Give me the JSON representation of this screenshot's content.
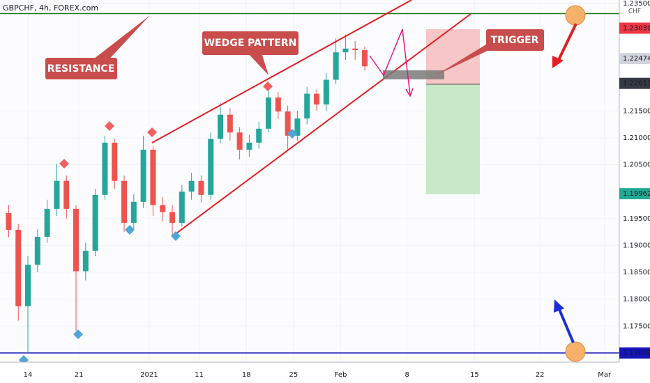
{
  "chart_data": {
    "type": "candlestick",
    "title": "GBPCHF, 4h, FOREX.com",
    "currency": "CHF",
    "x": [
      -2,
      -1,
      0,
      1,
      2,
      3,
      4,
      5,
      6,
      7,
      8,
      9,
      10,
      11,
      12,
      13,
      14,
      15,
      16,
      17,
      18,
      19,
      20,
      21,
      22,
      23,
      24,
      25,
      26,
      27,
      28,
      29,
      30,
      31,
      32,
      33,
      34,
      35
    ],
    "open": [
      1.196,
      1.1929,
      1.1787,
      1.1864,
      1.1916,
      1.1968,
      1.202,
      1.1968,
      1.1852,
      1.189,
      1.1994,
      1.2091,
      1.202,
      1.1942,
      1.1981,
      1.2078,
      1.1975,
      1.1962,
      1.1942,
      1.2,
      1.202,
      1.1994,
      1.2098,
      1.2143,
      1.211,
      1.2078,
      1.2091,
      1.2117,
      1.2175,
      1.2149,
      1.2104,
      1.2136,
      1.2182,
      1.2162,
      1.2208,
      1.2259,
      1.2266,
      1.2263
    ],
    "high": [
      1.1975,
      1.194,
      1.188,
      1.193,
      1.1985,
      1.2052,
      1.203,
      1.1975,
      1.1905,
      1.2005,
      1.2104,
      1.2098,
      1.203,
      1.1995,
      1.2104,
      1.2085,
      1.199,
      1.1975,
      1.2012,
      1.2035,
      1.203,
      1.211,
      1.2165,
      1.2155,
      1.212,
      1.2105,
      1.213,
      1.219,
      1.2185,
      1.216,
      1.215,
      1.2195,
      1.219,
      1.222,
      1.2285,
      1.2292,
      1.228,
      1.227
    ],
    "low": [
      1.1915,
      1.176,
      1.17,
      1.185,
      1.1905,
      1.1955,
      1.195,
      1.1741,
      1.1835,
      1.188,
      1.1985,
      1.2005,
      1.1925,
      1.193,
      1.197,
      1.1955,
      1.1945,
      1.1916,
      1.1935,
      1.1985,
      1.198,
      1.1985,
      1.209,
      1.2095,
      1.206,
      1.2065,
      1.208,
      1.211,
      1.2135,
      1.2078,
      1.2095,
      1.2125,
      1.215,
      1.215,
      1.22,
      1.2245,
      1.2245,
      1.2225
    ],
    "close": [
      1.1929,
      1.1787,
      1.1864,
      1.1916,
      1.1968,
      1.202,
      1.1968,
      1.1852,
      1.189,
      1.1994,
      1.2091,
      1.202,
      1.1942,
      1.1981,
      1.2078,
      1.1975,
      1.1962,
      1.1942,
      1.2,
      1.202,
      1.1994,
      1.2098,
      1.2143,
      1.211,
      1.2078,
      1.2091,
      1.2117,
      1.2175,
      1.2149,
      1.2104,
      1.2136,
      1.2182,
      1.2162,
      1.2208,
      1.2259,
      1.2266,
      1.2263,
      1.2233
    ],
    "up_color": "#26a69a",
    "down_color": "#ef5350",
    "xlim": [
      -2.9,
      60.36
    ],
    "xticks": [
      {
        "value": 0,
        "label": "14"
      },
      {
        "value": 5.3,
        "label": "21"
      },
      {
        "value": 12.6,
        "label": "2021"
      },
      {
        "value": 17.8,
        "label": "11"
      },
      {
        "value": 22.7,
        "label": "18"
      },
      {
        "value": 27.6,
        "label": "25"
      },
      {
        "value": 32.5,
        "label": "Feb"
      },
      {
        "value": 39.4,
        "label": "8"
      },
      {
        "value": 46.4,
        "label": "15"
      },
      {
        "value": 53.2,
        "label": "22"
      },
      {
        "value": 59.9,
        "label": "Mar"
      }
    ],
    "ylim": [
      1.1683,
      1.23563
    ],
    "yticks": [
      {
        "value": 1.175,
        "label": "1.17500"
      },
      {
        "value": 1.18,
        "label": "1.18000"
      },
      {
        "value": 1.185,
        "label": "1.18500"
      },
      {
        "value": 1.19,
        "label": "1.19000"
      },
      {
        "value": 1.195,
        "label": "1.19500"
      },
      {
        "value": 1.205,
        "label": "1.20500"
      },
      {
        "value": 1.21,
        "label": "1.21000"
      },
      {
        "value": 1.215,
        "label": "1.21500"
      },
      {
        "value": 1.235,
        "label": "1.23500"
      }
    ],
    "price_badges": [
      {
        "value": 1.23039,
        "label": "1.23039",
        "color": "#f23645"
      },
      {
        "value": 1.22474,
        "label": "1.22474",
        "color": "#d1d4dc"
      },
      {
        "value": 1.22013,
        "label": "1.22013",
        "color": "#363a45"
      },
      {
        "value": 1.19962,
        "label": "1.19962",
        "color": "#22ab94"
      },
      {
        "value": 1.17,
        "label": "1.17000",
        "color": "#1414b8"
      }
    ],
    "levels": [
      {
        "value": 1.2331,
        "color": "#1b7a1b"
      },
      {
        "value": 1.17,
        "color": "#1414b8"
      }
    ],
    "annotations": [
      "RESISTANCE",
      "WEDGE PATTERN",
      "TRIGGER"
    ]
  }
}
